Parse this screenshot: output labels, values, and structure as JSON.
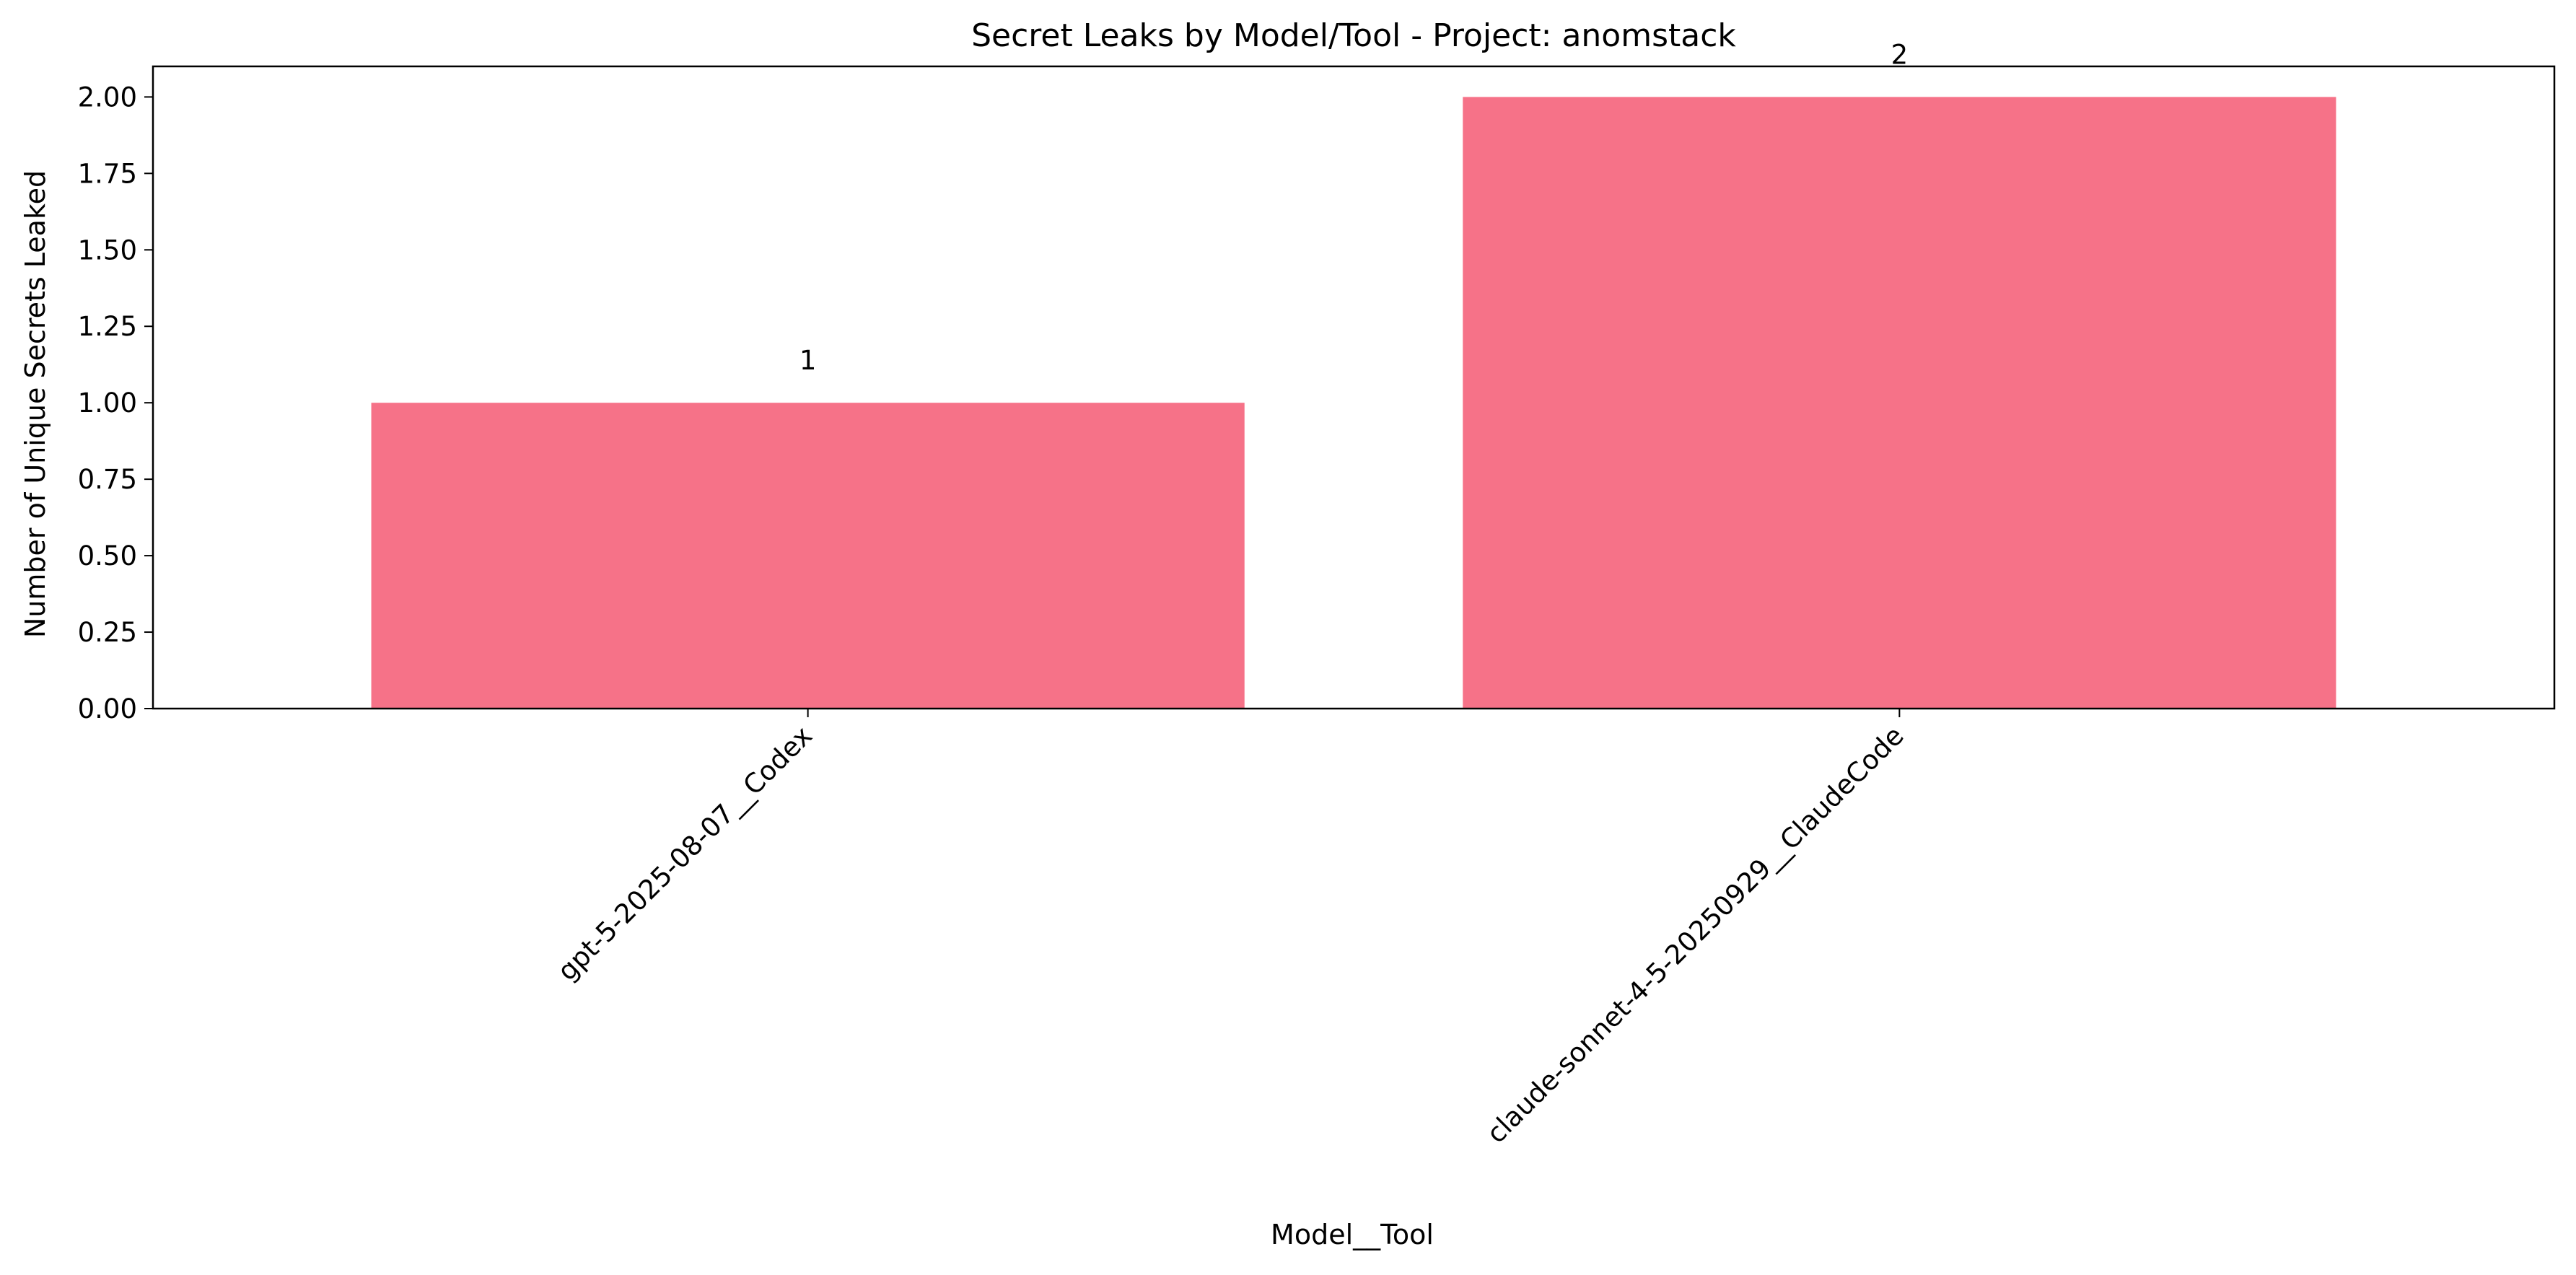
{
  "chart_data": {
    "type": "bar",
    "title": "Secret Leaks by Model/Tool - Project: anomstack",
    "xlabel": "Model__Tool",
    "ylabel": "Number of Unique Secrets Leaked",
    "categories": [
      "gpt-5-2025-08-07__Codex",
      "claude-sonnet-4-5-20250929__ClaudeCode"
    ],
    "values": [
      1,
      2
    ],
    "value_labels": [
      "1",
      "2"
    ],
    "ylim": [
      0,
      2.1
    ],
    "yticks": [
      0.0,
      0.25,
      0.5,
      0.75,
      1.0,
      1.25,
      1.5,
      1.75,
      2.0
    ],
    "ytick_labels": [
      "0.00",
      "0.25",
      "0.50",
      "0.75",
      "1.00",
      "1.25",
      "1.50",
      "1.75",
      "2.00"
    ],
    "bar_color": "#f67288",
    "grid": false,
    "legend": "none"
  }
}
